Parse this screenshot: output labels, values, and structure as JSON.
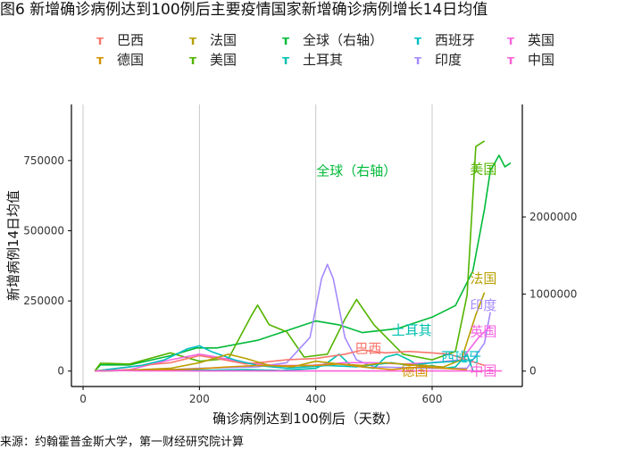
{
  "title": "图6 新增确诊病例达到100例后主要疫情国家新增确诊病例增长14日均值",
  "source": "来源：约翰霍普金斯大学，第一财经研究院计算",
  "legend": [
    {
      "label": "巴西",
      "color": "#F8766D"
    },
    {
      "label": "法国",
      "color": "#B79F00"
    },
    {
      "label": "全球（右轴）",
      "color": "#00BA38"
    },
    {
      "label": "西班牙",
      "color": "#00BFC4"
    },
    {
      "label": "英国",
      "color": "#F564E3"
    },
    {
      "label": "德国",
      "color": "#D39200"
    },
    {
      "label": "美国",
      "color": "#53B400"
    },
    {
      "label": "土耳其",
      "color": "#00C0AF"
    },
    {
      "label": "印度",
      "color": "#A58AFF"
    },
    {
      "label": "中国",
      "color": "#FB61D7"
    }
  ],
  "chart_data": {
    "type": "line",
    "xlabel": "确诊病例达到100例后（天数）",
    "ylabel": "新增病例14日均值",
    "xlim": [
      -20,
      755
    ],
    "ylim": [
      -55000,
      950000
    ],
    "y2lim": [
      -200000,
      3460000
    ],
    "xticks": [
      0,
      200,
      400,
      600
    ],
    "xtick_labels": [
      "0",
      "200",
      "400",
      "600"
    ],
    "yticks": [
      0,
      250000,
      500000,
      750000
    ],
    "ytick_labels": [
      "0",
      "250000",
      "500000",
      "750000"
    ],
    "y2ticks": [
      0,
      1000000,
      2000000
    ],
    "y2tick_labels": [
      "0",
      "1000000",
      "2000000"
    ],
    "grid": "vertical",
    "series": [
      {
        "name": "全球（右轴）",
        "axis": "right",
        "color": "#00BA38",
        "label": "全球（右轴）",
        "label_x": 470,
        "label_y": 2600000,
        "points": [
          [
            20,
            0
          ],
          [
            30,
            80000
          ],
          [
            80,
            80000
          ],
          [
            150,
            200000
          ],
          [
            195,
            300000
          ],
          [
            230,
            300000
          ],
          [
            300,
            400000
          ],
          [
            360,
            550000
          ],
          [
            400,
            650000
          ],
          [
            440,
            600000
          ],
          [
            480,
            500000
          ],
          [
            540,
            550000
          ],
          [
            600,
            700000
          ],
          [
            640,
            850000
          ],
          [
            670,
            1300000
          ],
          [
            690,
            2100000
          ],
          [
            700,
            2600000
          ],
          [
            715,
            2800000
          ],
          [
            725,
            2650000
          ],
          [
            735,
            2700000
          ]
        ]
      },
      {
        "name": "美国",
        "color": "#53B400",
        "label": "美国",
        "label_x": 688,
        "label_y": 720000,
        "points": [
          [
            20,
            0
          ],
          [
            30,
            28000
          ],
          [
            80,
            25000
          ],
          [
            150,
            65000
          ],
          [
            200,
            35000
          ],
          [
            250,
            45000
          ],
          [
            290,
            200000
          ],
          [
            300,
            235000
          ],
          [
            320,
            165000
          ],
          [
            350,
            140000
          ],
          [
            380,
            50000
          ],
          [
            420,
            60000
          ],
          [
            450,
            185000
          ],
          [
            470,
            255000
          ],
          [
            500,
            165000
          ],
          [
            550,
            60000
          ],
          [
            600,
            40000
          ],
          [
            640,
            70000
          ],
          [
            660,
            270000
          ],
          [
            675,
            800000
          ],
          [
            690,
            820000
          ]
        ]
      },
      {
        "name": "印度",
        "color": "#A58AFF",
        "label": "印度",
        "label_x": 688,
        "label_y": 235000,
        "points": [
          [
            20,
            0
          ],
          [
            150,
            5000
          ],
          [
            200,
            10000
          ],
          [
            300,
            15000
          ],
          [
            350,
            30000
          ],
          [
            390,
            120000
          ],
          [
            410,
            330000
          ],
          [
            420,
            380000
          ],
          [
            430,
            330000
          ],
          [
            450,
            120000
          ],
          [
            470,
            40000
          ],
          [
            500,
            15000
          ],
          [
            600,
            10000
          ],
          [
            660,
            10000
          ],
          [
            690,
            100000
          ],
          [
            700,
            210000
          ]
        ]
      },
      {
        "name": "土耳其",
        "color": "#00C0AF",
        "label": "土耳其",
        "label_x": 565,
        "label_y": 145000,
        "points": [
          [
            20,
            0
          ],
          [
            100,
            3000
          ],
          [
            150,
            5000
          ],
          [
            200,
            3000
          ],
          [
            280,
            5000
          ],
          [
            340,
            2000
          ],
          [
            400,
            10000
          ],
          [
            420,
            30000
          ],
          [
            440,
            60000
          ],
          [
            460,
            20000
          ],
          [
            500,
            10000
          ],
          [
            520,
            50000
          ],
          [
            540,
            60000
          ],
          [
            560,
            40000
          ],
          [
            580,
            15000
          ],
          [
            600,
            20000
          ],
          [
            620,
            10000
          ],
          [
            640,
            15000
          ],
          [
            660,
            60000
          ],
          [
            670,
            2000
          ]
        ]
      },
      {
        "name": "英国",
        "color": "#F564E3",
        "label": "英国",
        "label_x": 688,
        "label_y": 140000,
        "points": [
          [
            20,
            0
          ],
          [
            80,
            5000
          ],
          [
            150,
            40000
          ],
          [
            200,
            60000
          ],
          [
            230,
            50000
          ],
          [
            280,
            30000
          ],
          [
            330,
            20000
          ],
          [
            390,
            20000
          ],
          [
            450,
            30000
          ],
          [
            500,
            30000
          ],
          [
            550,
            25000
          ],
          [
            600,
            30000
          ],
          [
            650,
            40000
          ],
          [
            680,
            120000
          ],
          [
            700,
            160000
          ]
        ]
      },
      {
        "name": "巴西",
        "color": "#F8766D",
        "label": "巴西",
        "label_x": 490,
        "label_y": 80000,
        "points": [
          [
            20,
            0
          ],
          [
            100,
            20000
          ],
          [
            150,
            30000
          ],
          [
            200,
            55000
          ],
          [
            230,
            45000
          ],
          [
            280,
            25000
          ],
          [
            350,
            40000
          ],
          [
            400,
            45000
          ],
          [
            450,
            60000
          ],
          [
            480,
            75000
          ],
          [
            520,
            65000
          ],
          [
            560,
            70000
          ],
          [
            600,
            65000
          ],
          [
            630,
            60000
          ],
          [
            660,
            40000
          ],
          [
            690,
            20000
          ]
        ]
      },
      {
        "name": "西班牙",
        "color": "#00BFC4",
        "label": "西班牙",
        "label_x": 650,
        "label_y": 50000,
        "points": [
          [
            20,
            0
          ],
          [
            60,
            10000
          ],
          [
            100,
            20000
          ],
          [
            140,
            40000
          ],
          [
            180,
            80000
          ],
          [
            200,
            90000
          ],
          [
            220,
            70000
          ],
          [
            260,
            40000
          ],
          [
            300,
            20000
          ],
          [
            350,
            10000
          ],
          [
            420,
            20000
          ],
          [
            470,
            15000
          ],
          [
            530,
            30000
          ],
          [
            560,
            20000
          ],
          [
            600,
            30000
          ],
          [
            640,
            35000
          ],
          [
            670,
            40000
          ]
        ]
      },
      {
        "name": "法国",
        "color": "#B79F00",
        "label": "法国",
        "label_x": 688,
        "label_y": 330000,
        "points": [
          [
            20,
            0
          ],
          [
            100,
            5000
          ],
          [
            150,
            10000
          ],
          [
            200,
            30000
          ],
          [
            250,
            60000
          ],
          [
            280,
            45000
          ],
          [
            320,
            20000
          ],
          [
            360,
            15000
          ],
          [
            400,
            35000
          ],
          [
            440,
            25000
          ],
          [
            480,
            20000
          ],
          [
            520,
            30000
          ],
          [
            580,
            20000
          ],
          [
            620,
            15000
          ],
          [
            650,
            40000
          ],
          [
            675,
            200000
          ],
          [
            690,
            280000
          ]
        ]
      },
      {
        "name": "德国",
        "color": "#D39200",
        "label": "德国",
        "label_x": 570,
        "label_y": 0,
        "points": [
          [
            20,
            0
          ],
          [
            100,
            3000
          ],
          [
            150,
            5000
          ],
          [
            200,
            8000
          ],
          [
            250,
            15000
          ],
          [
            300,
            20000
          ],
          [
            350,
            18000
          ],
          [
            400,
            20000
          ],
          [
            440,
            25000
          ],
          [
            480,
            15000
          ],
          [
            530,
            5000
          ],
          [
            580,
            15000
          ],
          [
            620,
            10000
          ],
          [
            660,
            5000
          ]
        ]
      },
      {
        "name": "中国",
        "color": "#FB61D7",
        "label": "中国",
        "label_x": 688,
        "label_y": 0,
        "points": [
          [
            20,
            0
          ],
          [
            60,
            2000
          ],
          [
            100,
            500
          ],
          [
            200,
            300
          ],
          [
            400,
            200
          ],
          [
            600,
            300
          ],
          [
            720,
            500
          ]
        ]
      }
    ]
  }
}
